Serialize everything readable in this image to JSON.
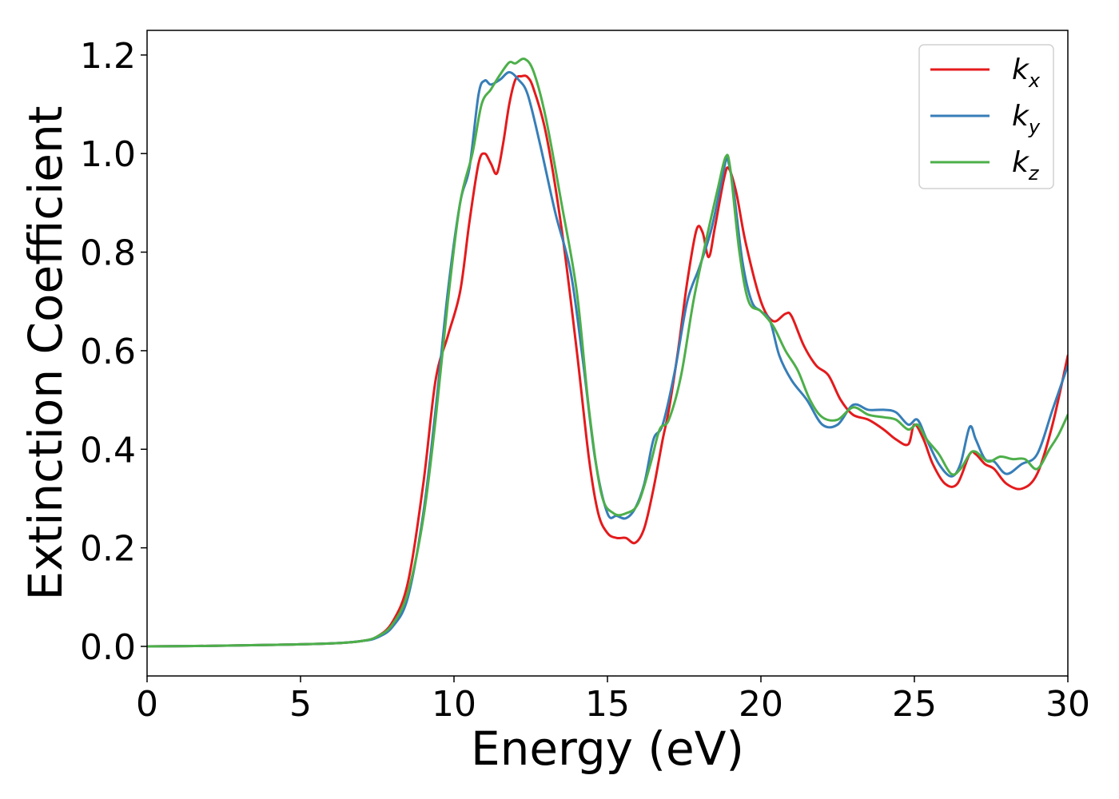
{
  "chart_data": {
    "type": "line",
    "title": "",
    "xlabel": "Energy (eV)",
    "ylabel": "Extinction Coefficient",
    "xlim": [
      0,
      30
    ],
    "ylim": [
      -0.06,
      1.25
    ],
    "xticks": [
      0,
      5,
      10,
      15,
      20,
      25,
      30
    ],
    "xtick_labels": [
      "0",
      "5",
      "10",
      "15",
      "20",
      "25",
      "30"
    ],
    "yticks": [
      0.0,
      0.2,
      0.4,
      0.6,
      0.8,
      1.0,
      1.2
    ],
    "ytick_labels": [
      "0.0",
      "0.2",
      "0.4",
      "0.6",
      "0.8",
      "1.0",
      "1.2"
    ],
    "grid": false,
    "legend_position": "top-right",
    "series": [
      {
        "name": "k_x",
        "label_base": "k",
        "label_sub": "x",
        "color": "#e41a1c",
        "points": [
          [
            0,
            0.0
          ],
          [
            2,
            0.001
          ],
          [
            4,
            0.003
          ],
          [
            6,
            0.006
          ],
          [
            7,
            0.011
          ],
          [
            7.5,
            0.02
          ],
          [
            8,
            0.05
          ],
          [
            8.5,
            0.13
          ],
          [
            9,
            0.33
          ],
          [
            9.4,
            0.54
          ],
          [
            9.8,
            0.63
          ],
          [
            10.2,
            0.72
          ],
          [
            10.5,
            0.86
          ],
          [
            10.8,
            0.98
          ],
          [
            11.0,
            1.0
          ],
          [
            11.2,
            0.98
          ],
          [
            11.4,
            0.96
          ],
          [
            11.6,
            1.02
          ],
          [
            11.8,
            1.1
          ],
          [
            12.0,
            1.15
          ],
          [
            12.2,
            1.157
          ],
          [
            12.4,
            1.155
          ],
          [
            12.6,
            1.13
          ],
          [
            13.0,
            1.04
          ],
          [
            13.5,
            0.85
          ],
          [
            14.0,
            0.6
          ],
          [
            14.4,
            0.38
          ],
          [
            14.7,
            0.27
          ],
          [
            15.0,
            0.23
          ],
          [
            15.3,
            0.22
          ],
          [
            15.6,
            0.22
          ],
          [
            15.9,
            0.21
          ],
          [
            16.2,
            0.24
          ],
          [
            16.5,
            0.32
          ],
          [
            16.8,
            0.42
          ],
          [
            17.0,
            0.48
          ],
          [
            17.3,
            0.6
          ],
          [
            17.6,
            0.74
          ],
          [
            17.9,
            0.845
          ],
          [
            18.1,
            0.84
          ],
          [
            18.3,
            0.79
          ],
          [
            18.5,
            0.85
          ],
          [
            18.8,
            0.95
          ],
          [
            18.95,
            0.97
          ],
          [
            19.2,
            0.92
          ],
          [
            19.5,
            0.82
          ],
          [
            20.0,
            0.7
          ],
          [
            20.4,
            0.66
          ],
          [
            20.8,
            0.675
          ],
          [
            21.0,
            0.67
          ],
          [
            21.4,
            0.61
          ],
          [
            21.8,
            0.57
          ],
          [
            22.2,
            0.55
          ],
          [
            22.6,
            0.5
          ],
          [
            23.0,
            0.47
          ],
          [
            23.5,
            0.46
          ],
          [
            24.0,
            0.44
          ],
          [
            24.4,
            0.42
          ],
          [
            24.8,
            0.41
          ],
          [
            25.0,
            0.45
          ],
          [
            25.3,
            0.42
          ],
          [
            25.6,
            0.37
          ],
          [
            26.0,
            0.33
          ],
          [
            26.4,
            0.33
          ],
          [
            26.8,
            0.39
          ],
          [
            27.0,
            0.39
          ],
          [
            27.3,
            0.37
          ],
          [
            27.6,
            0.36
          ],
          [
            28.0,
            0.33
          ],
          [
            28.5,
            0.32
          ],
          [
            29.0,
            0.35
          ],
          [
            29.5,
            0.45
          ],
          [
            30.0,
            0.59
          ]
        ]
      },
      {
        "name": "k_y",
        "label_base": "k",
        "label_sub": "y",
        "color": "#377eb8",
        "points": [
          [
            0,
            0.0
          ],
          [
            2,
            0.001
          ],
          [
            4,
            0.003
          ],
          [
            6,
            0.006
          ],
          [
            7,
            0.011
          ],
          [
            7.5,
            0.018
          ],
          [
            8,
            0.04
          ],
          [
            8.5,
            0.1
          ],
          [
            9,
            0.27
          ],
          [
            9.4,
            0.48
          ],
          [
            9.8,
            0.72
          ],
          [
            10.2,
            0.9
          ],
          [
            10.5,
            0.97
          ],
          [
            10.8,
            1.12
          ],
          [
            11.0,
            1.148
          ],
          [
            11.2,
            1.14
          ],
          [
            11.5,
            1.15
          ],
          [
            11.8,
            1.165
          ],
          [
            12.1,
            1.15
          ],
          [
            12.4,
            1.12
          ],
          [
            12.8,
            1.02
          ],
          [
            13.3,
            0.88
          ],
          [
            13.8,
            0.76
          ],
          [
            14.2,
            0.58
          ],
          [
            14.6,
            0.38
          ],
          [
            15.0,
            0.27
          ],
          [
            15.3,
            0.265
          ],
          [
            15.6,
            0.26
          ],
          [
            15.9,
            0.28
          ],
          [
            16.2,
            0.33
          ],
          [
            16.5,
            0.42
          ],
          [
            16.8,
            0.45
          ],
          [
            17.2,
            0.56
          ],
          [
            17.6,
            0.7
          ],
          [
            18.0,
            0.77
          ],
          [
            18.4,
            0.85
          ],
          [
            18.8,
            0.97
          ],
          [
            18.9,
            0.99
          ],
          [
            19.1,
            0.93
          ],
          [
            19.4,
            0.78
          ],
          [
            19.7,
            0.7
          ],
          [
            20.0,
            0.68
          ],
          [
            20.3,
            0.66
          ],
          [
            20.6,
            0.59
          ],
          [
            21.0,
            0.54
          ],
          [
            21.5,
            0.5
          ],
          [
            22.0,
            0.45
          ],
          [
            22.5,
            0.45
          ],
          [
            23.0,
            0.49
          ],
          [
            23.5,
            0.48
          ],
          [
            24.0,
            0.48
          ],
          [
            24.4,
            0.475
          ],
          [
            24.8,
            0.45
          ],
          [
            25.1,
            0.46
          ],
          [
            25.4,
            0.42
          ],
          [
            25.8,
            0.37
          ],
          [
            26.2,
            0.345
          ],
          [
            26.5,
            0.37
          ],
          [
            26.8,
            0.445
          ],
          [
            27.0,
            0.42
          ],
          [
            27.3,
            0.38
          ],
          [
            27.6,
            0.375
          ],
          [
            28.0,
            0.35
          ],
          [
            28.5,
            0.37
          ],
          [
            29.0,
            0.39
          ],
          [
            29.5,
            0.48
          ],
          [
            30.0,
            0.57
          ]
        ]
      },
      {
        "name": "k_z",
        "label_base": "k",
        "label_sub": "z",
        "color": "#4daf4a",
        "points": [
          [
            0,
            0.0
          ],
          [
            2,
            0.001
          ],
          [
            4,
            0.003
          ],
          [
            6,
            0.006
          ],
          [
            7,
            0.011
          ],
          [
            7.5,
            0.02
          ],
          [
            8,
            0.045
          ],
          [
            8.5,
            0.11
          ],
          [
            9,
            0.26
          ],
          [
            9.4,
            0.46
          ],
          [
            9.8,
            0.7
          ],
          [
            10.2,
            0.9
          ],
          [
            10.6,
            1.0
          ],
          [
            10.9,
            1.1
          ],
          [
            11.2,
            1.13
          ],
          [
            11.5,
            1.16
          ],
          [
            11.8,
            1.185
          ],
          [
            12.0,
            1.183
          ],
          [
            12.3,
            1.192
          ],
          [
            12.6,
            1.165
          ],
          [
            13.0,
            1.07
          ],
          [
            13.5,
            0.9
          ],
          [
            14.0,
            0.72
          ],
          [
            14.4,
            0.48
          ],
          [
            14.8,
            0.31
          ],
          [
            15.2,
            0.27
          ],
          [
            15.6,
            0.27
          ],
          [
            16.0,
            0.29
          ],
          [
            16.4,
            0.37
          ],
          [
            16.7,
            0.44
          ],
          [
            17.0,
            0.46
          ],
          [
            17.4,
            0.55
          ],
          [
            17.8,
            0.7
          ],
          [
            18.2,
            0.82
          ],
          [
            18.6,
            0.93
          ],
          [
            18.85,
            0.993
          ],
          [
            19.0,
            0.97
          ],
          [
            19.3,
            0.8
          ],
          [
            19.6,
            0.7
          ],
          [
            20.0,
            0.68
          ],
          [
            20.4,
            0.65
          ],
          [
            20.8,
            0.6
          ],
          [
            21.2,
            0.56
          ],
          [
            21.6,
            0.5
          ],
          [
            22.0,
            0.465
          ],
          [
            22.5,
            0.46
          ],
          [
            23.0,
            0.485
          ],
          [
            23.5,
            0.47
          ],
          [
            24.0,
            0.465
          ],
          [
            24.4,
            0.46
          ],
          [
            24.8,
            0.44
          ],
          [
            25.1,
            0.45
          ],
          [
            25.4,
            0.42
          ],
          [
            25.8,
            0.39
          ],
          [
            26.2,
            0.35
          ],
          [
            26.5,
            0.36
          ],
          [
            26.8,
            0.39
          ],
          [
            27.0,
            0.395
          ],
          [
            27.4,
            0.375
          ],
          [
            27.8,
            0.385
          ],
          [
            28.2,
            0.38
          ],
          [
            28.6,
            0.38
          ],
          [
            29.0,
            0.36
          ],
          [
            29.4,
            0.4
          ],
          [
            29.7,
            0.43
          ],
          [
            30.0,
            0.47
          ]
        ]
      }
    ]
  }
}
